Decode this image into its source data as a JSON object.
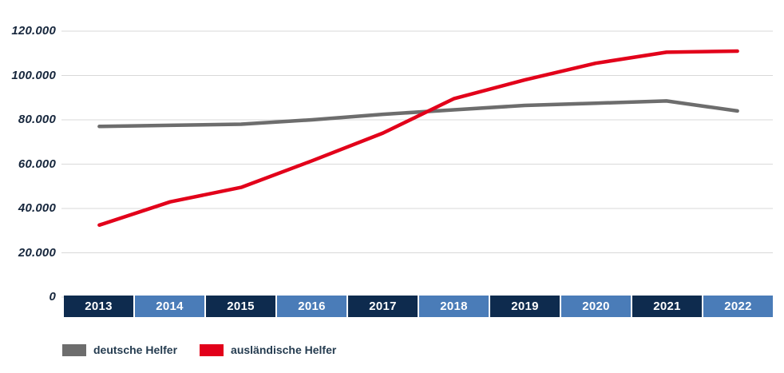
{
  "chart_data": {
    "type": "line",
    "categories": [
      "2013",
      "2014",
      "2015",
      "2016",
      "2017",
      "2018",
      "2019",
      "2020",
      "2021",
      "2022"
    ],
    "series": [
      {
        "name": "deutsche Helfer",
        "color": "#6d6d6d",
        "values": [
          77000,
          77500,
          78000,
          80000,
          82500,
          84500,
          86500,
          87500,
          88500,
          84000
        ]
      },
      {
        "name": "ausländische Helfer",
        "color": "#e2001a",
        "values": [
          32500,
          43000,
          49500,
          61500,
          74000,
          89500,
          98000,
          105500,
          110500,
          111000
        ]
      }
    ],
    "title": "",
    "xlabel": "",
    "ylabel": "",
    "ylim": [
      0,
      120000
    ],
    "ytick_values": [
      0,
      20000,
      40000,
      60000,
      80000,
      100000,
      120000
    ],
    "ytick_labels": [
      "0",
      "20.000",
      "40.000",
      "60.000",
      "80.000",
      "100.000",
      "120.000"
    ],
    "grid": true,
    "legend_position": "bottom-left",
    "colors": {
      "band_dark": "#0e2b4e",
      "band_light": "#4a7cb8",
      "gridline": "#d9d9d9",
      "ytick_text": "#16263c",
      "year_text": "#ffffff"
    }
  }
}
